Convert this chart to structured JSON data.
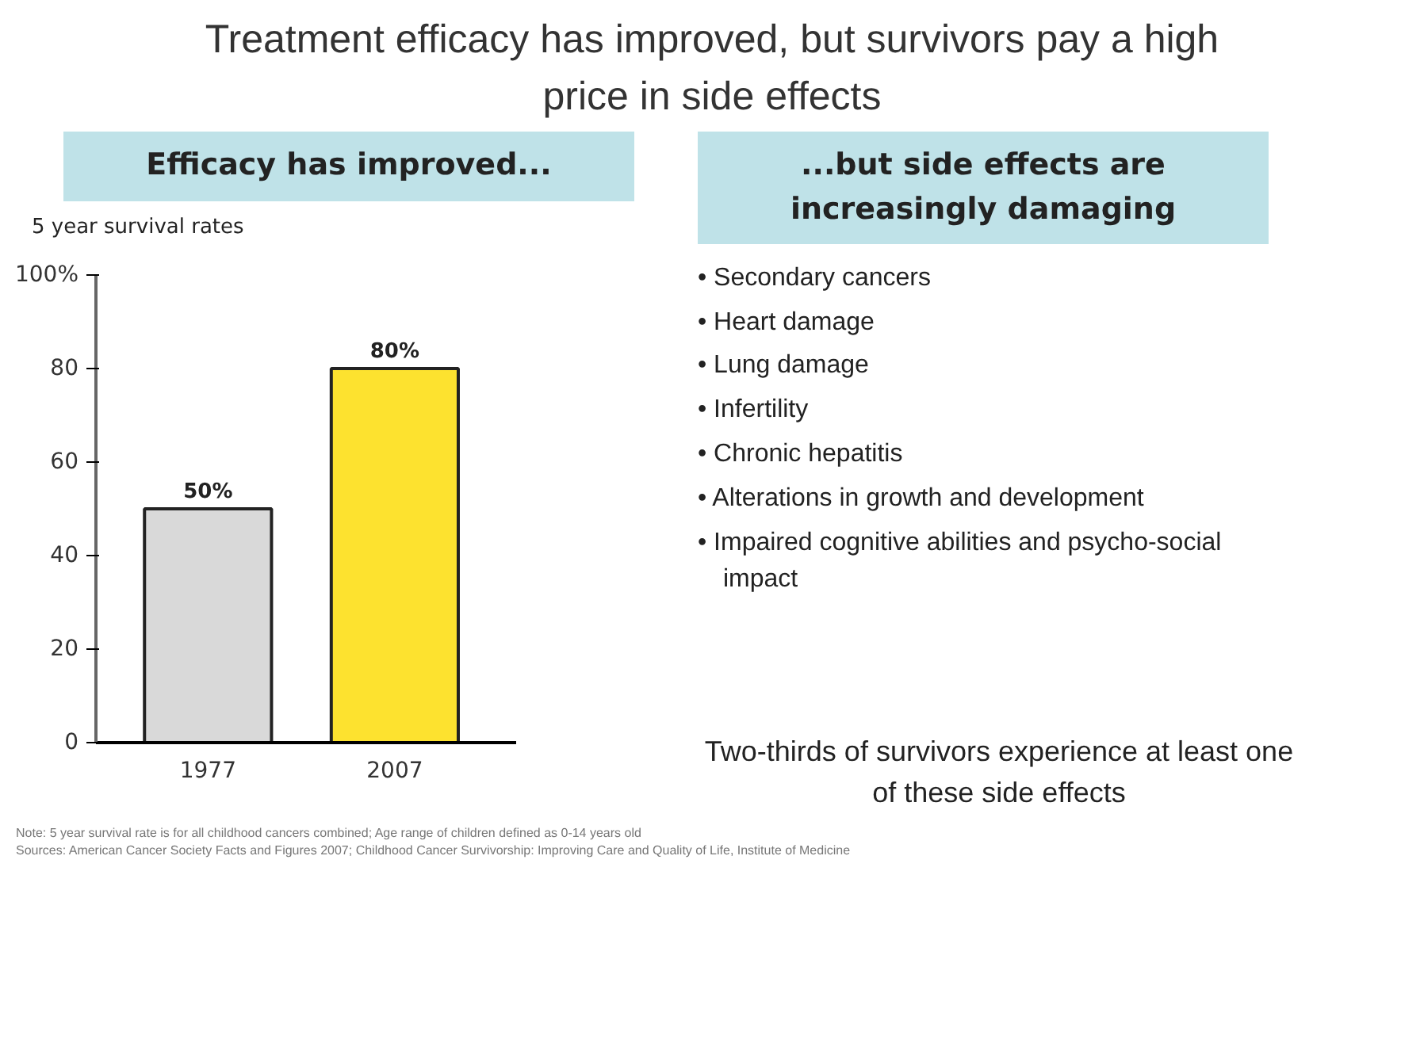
{
  "chart_data": {
    "type": "bar",
    "title": "Treatment efficacy has improved, but survivors pay a high price in side effects",
    "subtitle": "Efficacy has improved...",
    "ylabel": "5 year survival rates",
    "categories": [
      "1977",
      "2007"
    ],
    "values": [
      50,
      80
    ],
    "colors": [
      "#d9d9d9",
      "#fde22f"
    ],
    "value_labels": [
      "50%",
      "80%"
    ],
    "ylim": [
      0,
      100
    ],
    "yticks": [
      0,
      20,
      40,
      60,
      80,
      {
        "value": 100,
        "label": "100%"
      }
    ],
    "grid": false,
    "annotations": [
      "...but side effects are increasingly damaging",
      "• Secondary cancers",
      "• Heart damage",
      "• Lung damage",
      "• Infertility",
      "• Chronic hepatitis",
      "• Alterations in growth and development",
      "• Impaired cognitive abilities and psycho-social impact",
      "Two-thirds of survivors experience at least one of these side effects",
      "Note: 5 year survival rate is for all childhood cancers combined; Age range of children defined as 0-14 years old",
      "Sources: American Cancer Society Facts and Figures 2007; Childhood Cancer Survivorship: Improving Care and Quality of Life, Institute of Medicine"
    ]
  }
}
